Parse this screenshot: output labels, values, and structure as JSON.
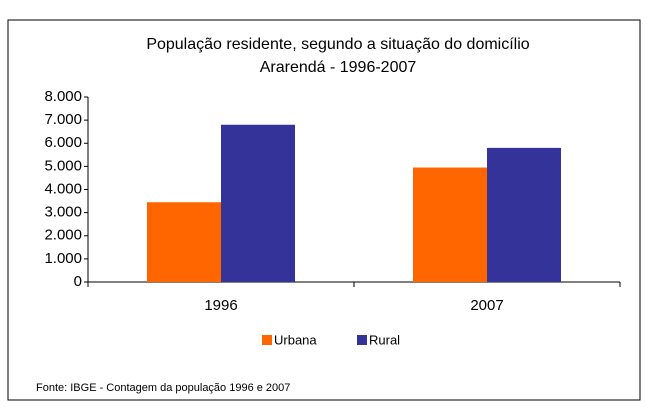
{
  "chart_data": {
    "type": "bar",
    "title": "População residente, segundo a situação do domicílio",
    "subtitle": "Ararendá - 1996-2007",
    "categories": [
      "1996",
      "2007"
    ],
    "series": [
      {
        "name": "Urbana",
        "color": "#ff6600",
        "values": [
          3450,
          4950
        ]
      },
      {
        "name": "Rural",
        "color": "#333399",
        "values": [
          6800,
          5800
        ]
      }
    ],
    "ylim": [
      0,
      8000
    ],
    "yticks": [
      0,
      {
        "value": 1000,
        "label": "1.000"
      },
      {
        "value": 2000,
        "label": "2.000"
      },
      {
        "value": 3000,
        "label": "3.000"
      },
      {
        "value": 4000,
        "label": "4.000"
      },
      {
        "value": 5000,
        "label": "5.000"
      },
      {
        "value": 6000,
        "label": "6.000"
      },
      {
        "value": 7000,
        "label": "7.000"
      },
      {
        "value": 8000,
        "label": "8.000"
      }
    ],
    "legend": "bottom",
    "source": "Fonte: IBGE - Contagem da população 1996 e 2007"
  }
}
